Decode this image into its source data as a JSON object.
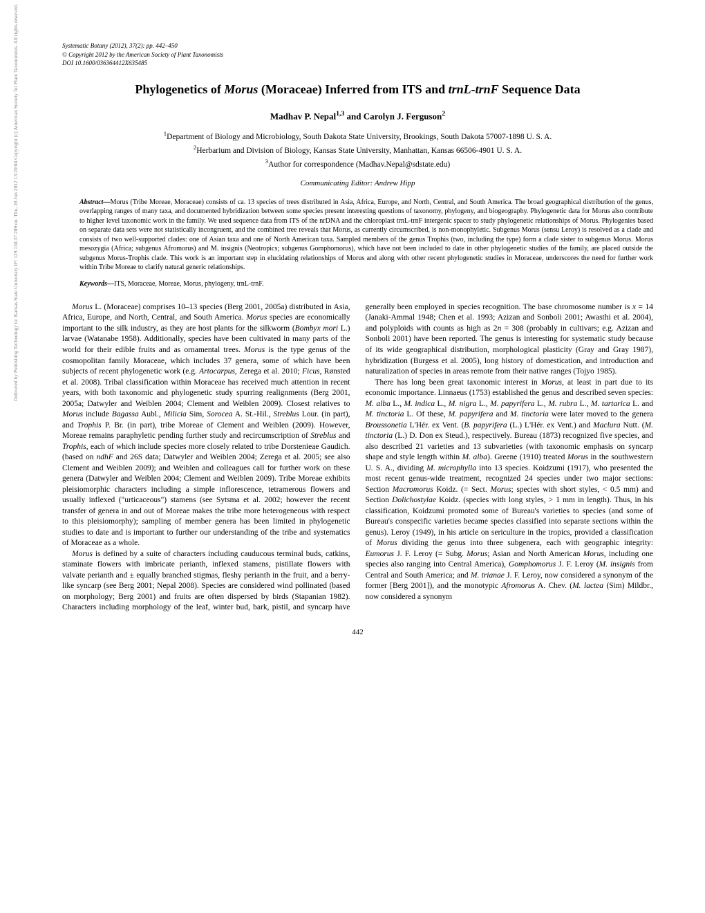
{
  "header": {
    "journal": "Systematic Botany",
    "year_vol": "(2012), 37(2): pp. 442–450",
    "copyright": "© Copyright 2012 by the American Society of Plant Taxonomists",
    "doi": "DOI 10.1600/036364412X635485"
  },
  "title": {
    "pre": "Phylogenetics of ",
    "it1": "Morus",
    "mid": " (Moraceae) Inferred from ITS and ",
    "it2": "trnL-trnF",
    "post": " Sequence Data"
  },
  "authors": "Madhav P. Nepal1,3 and Carolyn J. Ferguson2",
  "affiliations": {
    "a1": "1Department of Biology and Microbiology, South Dakota State University, Brookings, South Dakota 57007-1898 U. S. A.",
    "a2": "2Herbarium and Division of Biology, Kansas State University, Manhattan, Kansas 66506-4901 U. S. A.",
    "a3": "3Author for correspondence (Madhav.Nepal@sdstate.edu)"
  },
  "editor": "Communicating Editor: Andrew Hipp",
  "abstract": {
    "label": "Abstract—",
    "text": "Morus (Tribe Moreae, Moraceae) consists of ca. 13 species of trees distributed in Asia, Africa, Europe, and North, Central, and South America. The broad geographical distribution of the genus, overlapping ranges of many taxa, and documented hybridization between some species present interesting questions of taxonomy, phylogeny, and biogeography. Phylogenetic data for Morus also contribute to higher level taxonomic work in the family. We used sequence data from ITS of the nrDNA and the chloroplast trnL-trnF intergenic spacer to study phylogenetic relationships of Morus. Phylogenies based on separate data sets were not statistically incongruent, and the combined tree reveals that Morus, as currently circumscribed, is non-monophyletic. Subgenus Morus (sensu Leroy) is resolved as a clade and consists of two well-supported clades: one of Asian taxa and one of North American taxa. Sampled members of the genus Trophis (two, including the type) form a clade sister to subgenus Morus. Morus mesozygia (Africa; subgenus Afromorus) and M. insignis (Neotropics; subgenus Gomphomorus), which have not been included to date in other phylogenetic studies of the family, are placed outside the subgenus Morus-Trophis clade. This work is an important step in elucidating relationships of Morus and along with other recent phylogenetic studies in Moraceae, underscores the need for further work within Tribe Moreae to clarify natural generic relationships."
  },
  "keywords": {
    "label": "Keywords—",
    "text": "ITS, Moraceae, Moreae, Morus, phylogeny, trnL-trnF."
  },
  "body": {
    "p1": "Morus L. (Moraceae) comprises 10–13 species (Berg 2001, 2005a) distributed in Asia, Africa, Europe, and North, Central, and South America. Morus species are economically important to the silk industry, as they are host plants for the silkworm (Bombyx mori L.) larvae (Watanabe 1958). Additionally, species have been cultivated in many parts of the world for their edible fruits and as ornamental trees. Morus is the type genus of the cosmopolitan family Moraceae, which includes 37 genera, some of which have been subjects of recent phylogenetic work (e.g. Artocarpus, Zerega et al. 2010; Ficus, Rønsted et al. 2008). Tribal classification within Moraceae has received much attention in recent years, with both taxonomic and phylogenetic study spurring realignments (Berg 2001, 2005a; Datwyler and Weiblen 2004; Clement and Weiblen 2009). Closest relatives to Morus include Bagassa Aubl., Milicia Sim, Sorocea A. St.-Hil., Streblus Lour. (in part), and Trophis P. Br. (in part), tribe Moreae of Clement and Weiblen (2009). However, Moreae remains paraphyletic pending further study and recircumscription of Streblus and Trophis, each of which include species more closely related to tribe Dorstenieae Gaudich. (based on ndhF and 26S data; Datwyler and Weiblen 2004; Zerega et al. 2005; see also Clement and Weiblen 2009); and Weiblen and colleagues call for further work on these genera (Datwyler and Weiblen 2004; Clement and Weiblen 2009). Tribe Moreae exhibits pleisiomorphic characters including a simple inflorescence, tetramerous flowers and usually inflexed (\"urticaceous\") stamens (see Sytsma et al. 2002; however the recent transfer of genera in and out of Moreae makes the tribe more heterogeneous with respect to this pleisiomorphy); sampling of member genera has been limited in phylogenetic studies to date and is important to further our understanding of the tribe and systematics of Moraceae as a whole.",
    "p2": "Morus is defined by a suite of characters including cauducous terminal buds, catkins, staminate flowers with imbricate perianth, inflexed stamens, pistillate flowers with valvate perianth and ± equally branched stigmas, fleshy perianth in the fruit, and a berry-like syncarp (see Berg 2001; Nepal 2008). Species are considered wind pollinated (based on morphology; Berg 2001) and fruits are often dispersed by birds (Stapanian 1982). Characters including morphology of the leaf, winter bud, bark, pistil, and syncarp have generally been employed in species recognition. The base chromosome number is x = 14 (Janaki-Ammal 1948; Chen et al. 1993; Azizan and Sonboli 2001; Awasthi et al. 2004), and polyploids with counts as high as 2n = 308 (probably in cultivars; e.g. Azizan and Sonboli 2001) have been reported. The genus is interesting for systematic study because of its wide geographical distribution, morphological plasticity (Gray and Gray 1987), hybridization (Burgess et al. 2005), long history of domestication, and introduction and naturalization of species in areas remote from their native ranges (Tojyo 1985).",
    "p3": "There has long been great taxonomic interest in Morus, at least in part due to its economic importance. Linnaeus (1753) established the genus and described seven species: M. alba L., M. indica L., M. nigra L., M. papyrifera L., M. rubra L., M. tartarica L. and M. tinctoria L. Of these, M. papyrifera and M. tinctoria were later moved to the genera Broussonetia L'Hér. ex Vent. (B. papyrifera (L.) L'Hér. ex Vent.) and Maclura Nutt. (M. tinctoria (L.) D. Don ex Steud.), respectively. Bureau (1873) recognized five species, and also described 21 varieties and 13 subvarieties (with taxonomic emphasis on syncarp shape and style length within M. alba). Greene (1910) treated Morus in the southwestern U. S. A., dividing M. microphylla into 13 species. Koidzumi (1917), who presented the most recent genus-wide treatment, recognized 24 species under two major sections: Section Macromorus Koidz. (= Sect. Morus; species with short styles, < 0.5 mm) and Section Dolichostylae Koidz. (species with long styles, > 1 mm in length). Thus, in his classification, Koidzumi promoted some of Bureau's varieties to species (and some of Bureau's conspecific varieties became species classified into separate sections within the genus). Leroy (1949), in his article on sericulture in the tropics, provided a classification of Morus dividing the genus into three subgenera, each with geographic integrity: Eumorus J. F. Leroy (= Subg. Morus; Asian and North American Morus, including one species also ranging into Central America), Gomphomorus J. F. Leroy (M. insignis from Central and South America; and M. trianae J. F. Leroy, now considered a synonym of the former [Berg 2001]), and the monotypic Afromorus A. Chev. (M. lactea (Sim) Mildbr., now considered a synonym"
  },
  "page": "442",
  "sidebar": "Delivered by Publishing Technology to: Kansas State University IP: 129.130.37.209 on: Thu, 28 Jun 2012 13:20:04  Copyright (c) American Society for Plant Taxonomists. All rights reserved."
}
